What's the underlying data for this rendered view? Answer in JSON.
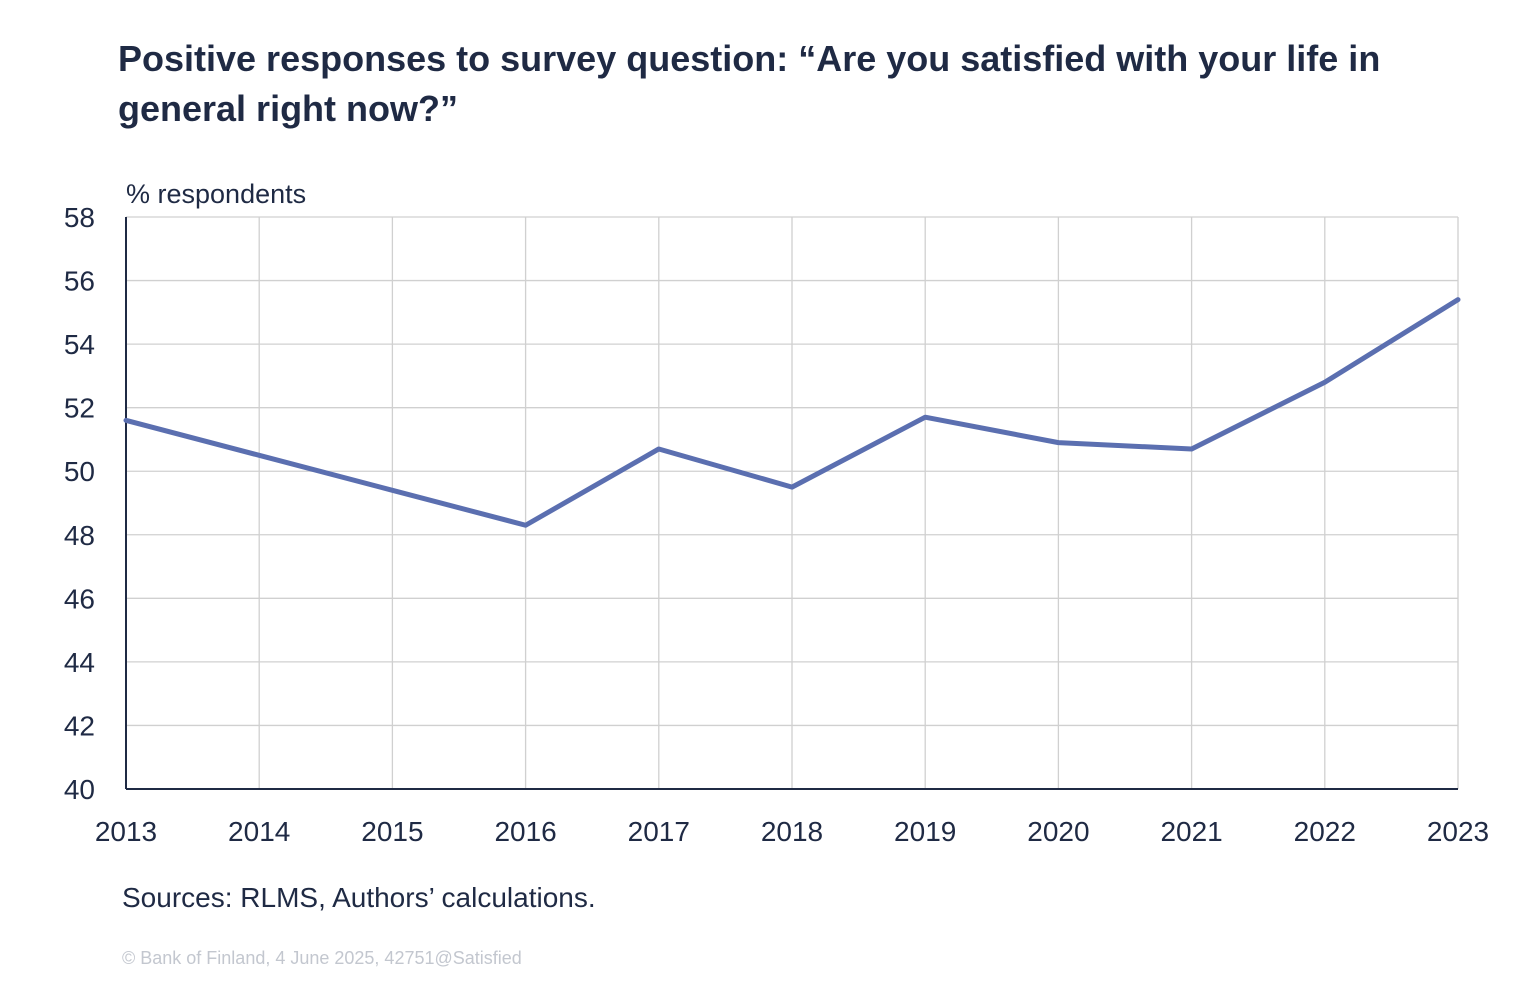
{
  "title": "Positive responses to survey question: “Are you satisfied with your life in general right now?”",
  "source": "Sources: RLMS, Authors’ calculations.",
  "copyright": "© Bank of Finland, 4 June 2025, 42751@Satisfied",
  "chart_data": {
    "type": "line",
    "ylabel": "% respondents",
    "xlabel": "",
    "x": [
      "2013",
      "2014",
      "2015",
      "2016",
      "2017",
      "2018",
      "2019",
      "2020",
      "2021",
      "2022",
      "2023"
    ],
    "series": [
      {
        "values": [
          51.6,
          50.5,
          49.4,
          48.3,
          50.7,
          49.5,
          51.7,
          50.9,
          50.7,
          52.8,
          55.4
        ]
      }
    ],
    "ylim": [
      40,
      58
    ],
    "yticks": [
      40,
      42,
      44,
      46,
      48,
      50,
      52,
      54,
      56,
      58
    ],
    "grid": true,
    "line_color": "#5b6fb0",
    "grid_color": "#d0d0d0",
    "axis_color": "#1f2a44"
  }
}
